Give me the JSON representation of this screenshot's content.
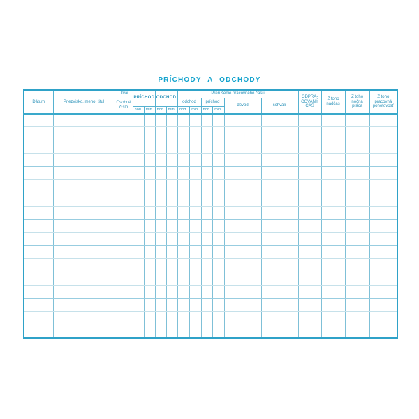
{
  "page": {
    "title": "PRÍCHODY A ODCHODY"
  },
  "table": {
    "columns": {
      "datum": "Dátum",
      "priezvisko": "Priezvisko, meno, titul",
      "utvar": "Útvar",
      "osobne_cislo": "Osobné číslo",
      "prichod": "PRÍCHOD",
      "odchod": "ODCHOD",
      "hod": "hod.",
      "min": "min.",
      "prerusenie": "Prerušenie pracovného času",
      "prerusenie_odchod": "odchod",
      "prerusenie_prichod": "príchod",
      "dovod": "dôvod",
      "schvalil": "schválil",
      "odpracovany_cas": "ODPRA-COVANÝ ČAS",
      "z_toho_nadcas": "Z toho nadčas",
      "z_toho_nocna_praca": "Z toho nočná práca",
      "z_toho_pracovna_pohotovost": "Z toho pracovná pohotovosť"
    },
    "row_count": 17,
    "body_columns": [
      "datum",
      "priezvisko",
      "osobne-cislo",
      "prichod-hod",
      "prichod-min",
      "odchod-hod",
      "odchod-min",
      "prerusenie-odchod-hod",
      "prerusenie-odchod-min",
      "prerusenie-prichod-hod",
      "prerusenie-prichod-min",
      "dovod",
      "schvalil",
      "odpracovany-cas",
      "z-toho-nadcas",
      "z-toho-nocna-praca",
      "z-toho-pracovna-pohotovost"
    ],
    "rows_are_empty": true
  },
  "colors": {
    "title_text": "#14a3cd",
    "header_text": "#2f94ba",
    "outer_border": "#2fa2c8",
    "grid_vertical": "#7fc0d7",
    "grid_horizontal_light": "#c6e1ea",
    "grid_horizontal_strong": "#98cde0",
    "background": "#ffffff"
  }
}
